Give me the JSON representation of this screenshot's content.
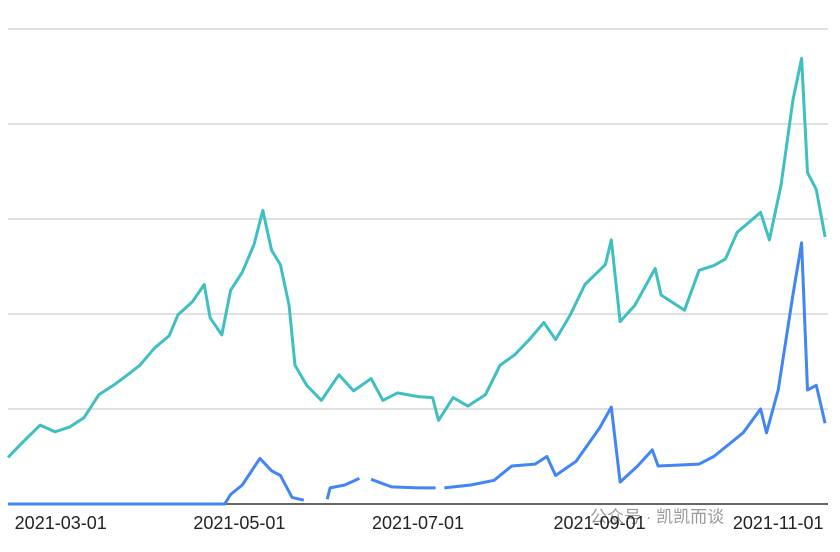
{
  "chart_data": {
    "type": "line",
    "watermark": "公众号 · 凯凯而谈",
    "xlim": [
      "2021-02-11",
      "2021-11-18"
    ],
    "xticks": [
      "2021-03-01",
      "2021-05-01",
      "2021-07-01",
      "2021-09-01",
      "2021-11-01"
    ],
    "ylim": [
      0,
      5
    ],
    "yticks": [
      1,
      2,
      3,
      4,
      5
    ],
    "grid": true,
    "series": [
      {
        "color": "#3fbfc2",
        "x": [
          "2021-02-11",
          "2021-02-16",
          "2021-02-22",
          "2021-02-27",
          "2021-03-04",
          "2021-03-09",
          "2021-03-14",
          "2021-03-19",
          "2021-03-23",
          "2021-03-28",
          "2021-04-02",
          "2021-04-07",
          "2021-04-10",
          "2021-04-15",
          "2021-04-19",
          "2021-04-21",
          "2021-04-25",
          "2021-04-28",
          "2021-05-02",
          "2021-05-06",
          "2021-05-09",
          "2021-05-12",
          "2021-05-15",
          "2021-05-18",
          "2021-05-20",
          "2021-05-24",
          "2021-05-29",
          "2021-06-04",
          "2021-06-09",
          "2021-06-15",
          "2021-06-19",
          "2021-06-24",
          "2021-07-01",
          "2021-07-06",
          "2021-07-08",
          "2021-07-13",
          "2021-07-18",
          "2021-07-24",
          "2021-07-29",
          "2021-08-03",
          "2021-08-08",
          "2021-08-13",
          "2021-08-17",
          "2021-08-22",
          "2021-08-27",
          "2021-09-03",
          "2021-09-05",
          "2021-09-08",
          "2021-09-13",
          "2021-09-20",
          "2021-09-22",
          "2021-09-30",
          "2021-10-05",
          "2021-10-10",
          "2021-10-14",
          "2021-10-18",
          "2021-10-26",
          "2021-10-29",
          "2021-11-02",
          "2021-11-06",
          "2021-11-09",
          "2021-11-11",
          "2021-11-14",
          "2021-11-17"
        ],
        "values": [
          0.49,
          0.65,
          0.83,
          0.76,
          0.81,
          0.91,
          1.15,
          1.25,
          1.34,
          1.46,
          1.64,
          1.77,
          1.99,
          2.13,
          2.31,
          1.96,
          1.78,
          2.25,
          2.44,
          2.73,
          3.09,
          2.67,
          2.52,
          2.09,
          1.46,
          1.25,
          1.09,
          1.36,
          1.19,
          1.32,
          1.09,
          1.17,
          1.13,
          1.12,
          0.88,
          1.12,
          1.03,
          1.15,
          1.46,
          1.57,
          1.73,
          1.91,
          1.73,
          1.99,
          2.31,
          2.52,
          2.78,
          1.92,
          2.09,
          2.48,
          2.2,
          2.04,
          2.46,
          2.51,
          2.58,
          2.86,
          3.07,
          2.78,
          3.36,
          4.25,
          4.69,
          3.49,
          3.31,
          2.81
        ]
      },
      {
        "color": "#4285f4",
        "x": [
          "2021-02-11",
          "2021-04-26",
          "2021-04-28",
          "2021-05-02",
          "2021-05-08",
          "2021-05-12",
          "2021-05-15",
          "2021-05-19",
          "2021-05-23",
          "2021-05-27",
          "2021-05-31",
          "2021-06-01",
          "2021-06-06",
          "2021-06-11",
          "2021-06-13",
          "2021-06-15",
          "2021-06-22",
          "2021-07-01",
          "2021-07-07",
          "2021-07-08",
          "2021-07-10",
          "2021-07-19",
          "2021-07-27",
          "2021-08-02",
          "2021-08-10",
          "2021-08-14",
          "2021-08-17",
          "2021-08-24",
          "2021-09-01",
          "2021-09-05",
          "2021-09-08",
          "2021-09-14",
          "2021-09-19",
          "2021-09-21",
          "2021-10-05",
          "2021-10-10",
          "2021-10-20",
          "2021-10-26",
          "2021-10-28",
          "2021-11-01",
          "2021-11-06",
          "2021-11-09",
          "2021-11-11",
          "2021-11-14",
          "2021-11-17"
        ],
        "values": [
          0,
          0,
          0.1,
          0.2,
          0.48,
          0.35,
          0.3,
          0.07,
          0.04,
          null,
          0.05,
          0.17,
          0.2,
          0.27,
          null,
          0.26,
          0.18,
          0.17,
          0.17,
          null,
          0.17,
          0.2,
          0.25,
          0.4,
          0.42,
          0.5,
          0.3,
          0.45,
          0.8,
          1.02,
          0.23,
          0.4,
          0.57,
          0.4,
          0.42,
          0.5,
          0.75,
          1.0,
          0.75,
          1.2,
          2.2,
          2.75,
          1.2,
          1.25,
          0.85
        ]
      }
    ]
  }
}
